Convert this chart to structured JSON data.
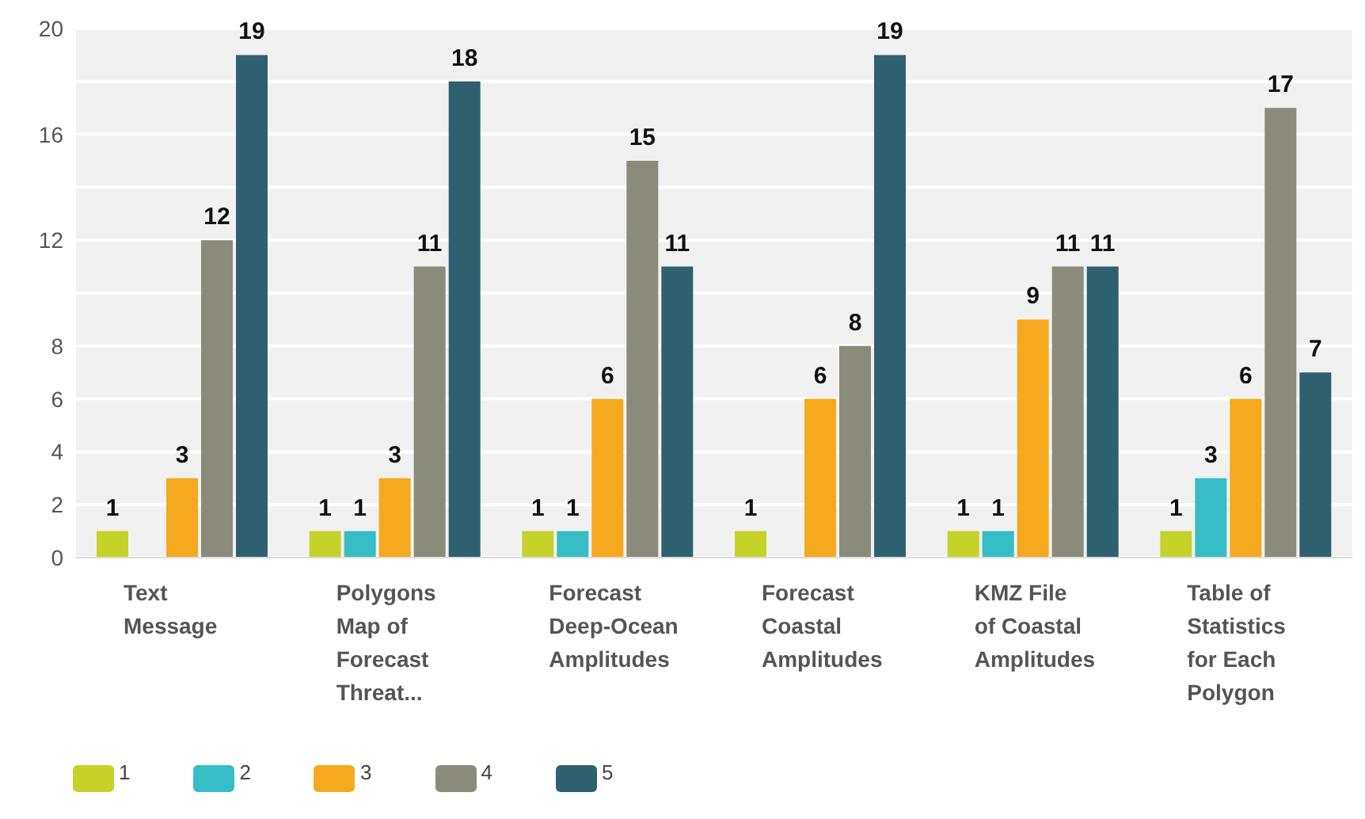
{
  "chart_data": {
    "type": "bar",
    "categories": [
      "Text Message",
      "Polygons Map of Forecast Threat...",
      "Forecast Deep-Ocean Amplitudes",
      "Forecast Coastal Amplitudes",
      "KMZ File of Coastal Amplitudes",
      "Table of Statistics for Each Polygon"
    ],
    "series": [
      {
        "name": "1",
        "color": "#c5d22a",
        "values": [
          1,
          1,
          1,
          1,
          1,
          1
        ]
      },
      {
        "name": "2",
        "color": "#36bdc6",
        "values": [
          null,
          1,
          1,
          null,
          1,
          3
        ]
      },
      {
        "name": "3",
        "color": "#f5a91e",
        "values": [
          3,
          3,
          6,
          6,
          9,
          6
        ]
      },
      {
        "name": "4",
        "color": "#8b8b7b",
        "values": [
          12,
          11,
          15,
          8,
          11,
          17
        ]
      },
      {
        "name": "5",
        "color": "#2e6070",
        "values": [
          19,
          18,
          11,
          19,
          11,
          7
        ]
      }
    ],
    "ylim": [
      0,
      20
    ],
    "yticks": [
      0,
      2,
      4,
      6,
      8,
      {
        "value": 10,
        "label": null
      },
      12,
      {
        "value": 14,
        "label": null
      },
      16,
      {
        "value": 18,
        "label": null
      },
      20
    ],
    "grid": "y",
    "legend": "bottom left",
    "data_labels": true
  }
}
